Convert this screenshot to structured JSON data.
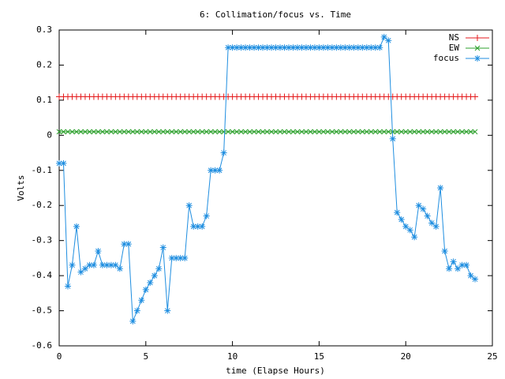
{
  "chart_data": {
    "type": "line",
    "title": "6: Collimation/focus vs. Time",
    "x_label": "time (Elapse Hours)",
    "y_label": "Volts",
    "xlim": [
      0,
      25
    ],
    "xticks": [
      0,
      5,
      10,
      15,
      20,
      25
    ],
    "ylim": [
      -0.6,
      0.3
    ],
    "yticks": [
      -0.6,
      -0.5,
      -0.4,
      -0.3,
      -0.2,
      -0.1,
      0,
      0.1,
      0.2,
      0.3
    ],
    "legend": "top right",
    "x": [
      0,
      0.25,
      0.5,
      0.75,
      1,
      1.25,
      1.5,
      1.75,
      2,
      2.25,
      2.5,
      2.75,
      3,
      3.25,
      3.5,
      3.75,
      4,
      4.25,
      4.5,
      4.75,
      5,
      5.25,
      5.5,
      5.75,
      6,
      6.25,
      6.5,
      6.75,
      7,
      7.25,
      7.5,
      7.75,
      8,
      8.25,
      8.5,
      8.75,
      9,
      9.25,
      9.5,
      9.75,
      10,
      10.25,
      10.5,
      10.75,
      11,
      11.25,
      11.5,
      11.75,
      12,
      12.25,
      12.5,
      12.75,
      13,
      13.25,
      13.5,
      13.75,
      14,
      14.25,
      14.5,
      14.75,
      15,
      15.25,
      15.5,
      15.75,
      16,
      16.25,
      16.5,
      16.75,
      17,
      17.25,
      17.5,
      17.75,
      18,
      18.25,
      18.5,
      18.75,
      19,
      19.25,
      19.5,
      19.75,
      20,
      20.25,
      20.5,
      20.75,
      21,
      21.25,
      21.5,
      21.75,
      22,
      22.25,
      22.5,
      22.75,
      23,
      23.25,
      23.5,
      23.75,
      24
    ],
    "series": [
      {
        "name": "NS",
        "color": "#e41a1c",
        "marker": "plus",
        "values": [
          0.11,
          0.11,
          0.11,
          0.11,
          0.11,
          0.11,
          0.11,
          0.11,
          0.11,
          0.11,
          0.11,
          0.11,
          0.11,
          0.11,
          0.11,
          0.11,
          0.11,
          0.11,
          0.11,
          0.11,
          0.11,
          0.11,
          0.11,
          0.11,
          0.11,
          0.11,
          0.11,
          0.11,
          0.11,
          0.11,
          0.11,
          0.11,
          0.11,
          0.11,
          0.11,
          0.11,
          0.11,
          0.11,
          0.11,
          0.11,
          0.11,
          0.11,
          0.11,
          0.11,
          0.11,
          0.11,
          0.11,
          0.11,
          0.11,
          0.11,
          0.11,
          0.11,
          0.11,
          0.11,
          0.11,
          0.11,
          0.11,
          0.11,
          0.11,
          0.11,
          0.11,
          0.11,
          0.11,
          0.11,
          0.11,
          0.11,
          0.11,
          0.11,
          0.11,
          0.11,
          0.11,
          0.11,
          0.11,
          0.11,
          0.11,
          0.11,
          0.11,
          0.11,
          0.11,
          0.11,
          0.11,
          0.11,
          0.11,
          0.11,
          0.11,
          0.11,
          0.11,
          0.11,
          0.11,
          0.11,
          0.11,
          0.11,
          0.11,
          0.11,
          0.11,
          0.11,
          0.11
        ]
      },
      {
        "name": "EW",
        "color": "#2ca02c",
        "marker": "cross",
        "values": [
          0.01,
          0.01,
          0.01,
          0.01,
          0.01,
          0.01,
          0.01,
          0.01,
          0.01,
          0.01,
          0.01,
          0.01,
          0.01,
          0.01,
          0.01,
          0.01,
          0.01,
          0.01,
          0.01,
          0.01,
          0.01,
          0.01,
          0.01,
          0.01,
          0.01,
          0.01,
          0.01,
          0.01,
          0.01,
          0.01,
          0.01,
          0.01,
          0.01,
          0.01,
          0.01,
          0.01,
          0.01,
          0.01,
          0.01,
          0.01,
          0.01,
          0.01,
          0.01,
          0.01,
          0.01,
          0.01,
          0.01,
          0.01,
          0.01,
          0.01,
          0.01,
          0.01,
          0.01,
          0.01,
          0.01,
          0.01,
          0.01,
          0.01,
          0.01,
          0.01,
          0.01,
          0.01,
          0.01,
          0.01,
          0.01,
          0.01,
          0.01,
          0.01,
          0.01,
          0.01,
          0.01,
          0.01,
          0.01,
          0.01,
          0.01,
          0.01,
          0.01,
          0.01,
          0.01,
          0.01,
          0.01,
          0.01,
          0.01,
          0.01,
          0.01,
          0.01,
          0.01,
          0.01,
          0.01,
          0.01,
          0.01,
          0.01,
          0.01,
          0.01,
          0.01,
          0.01,
          0.01
        ]
      },
      {
        "name": "focus",
        "color": "#1f8ee0",
        "marker": "star",
        "values": [
          -0.08,
          -0.08,
          -0.43,
          -0.37,
          -0.26,
          -0.39,
          -0.38,
          -0.37,
          -0.37,
          -0.33,
          -0.37,
          -0.37,
          -0.37,
          -0.37,
          -0.38,
          -0.31,
          -0.31,
          -0.53,
          -0.5,
          -0.47,
          -0.44,
          -0.42,
          -0.4,
          -0.38,
          -0.32,
          -0.5,
          -0.35,
          -0.35,
          -0.35,
          -0.35,
          -0.2,
          -0.26,
          -0.26,
          -0.26,
          -0.23,
          -0.1,
          -0.1,
          -0.1,
          -0.05,
          0.25,
          0.25,
          0.25,
          0.25,
          0.25,
          0.25,
          0.25,
          0.25,
          0.25,
          0.25,
          0.25,
          0.25,
          0.25,
          0.25,
          0.25,
          0.25,
          0.25,
          0.25,
          0.25,
          0.25,
          0.25,
          0.25,
          0.25,
          0.25,
          0.25,
          0.25,
          0.25,
          0.25,
          0.25,
          0.25,
          0.25,
          0.25,
          0.25,
          0.25,
          0.25,
          0.25,
          0.28,
          0.27,
          -0.01,
          -0.22,
          -0.24,
          -0.26,
          -0.27,
          -0.29,
          -0.2,
          -0.21,
          -0.23,
          -0.25,
          -0.26,
          -0.15,
          -0.33,
          -0.38,
          -0.36,
          -0.38,
          -0.37,
          -0.37,
          -0.4,
          -0.41
        ]
      }
    ]
  }
}
